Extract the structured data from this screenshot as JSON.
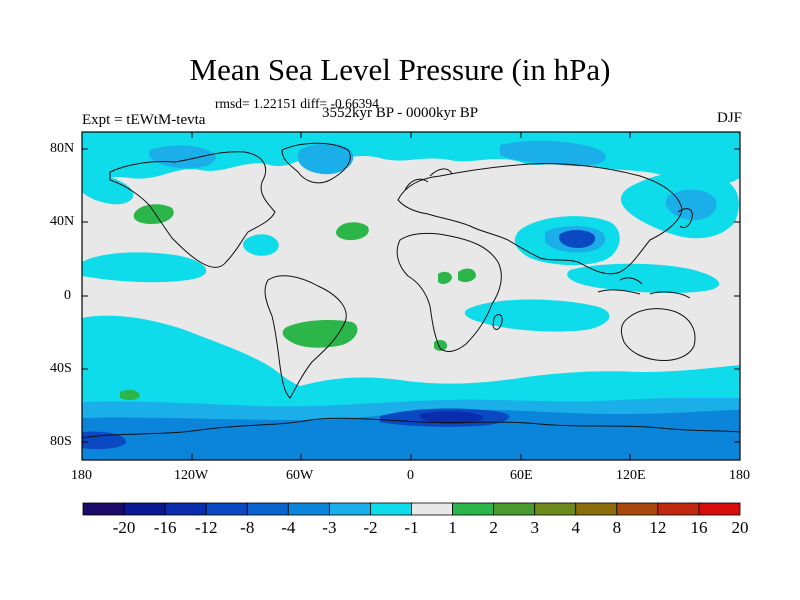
{
  "title": "Mean Sea Level Pressure (in hPa)",
  "stats": "rmsd= 1.22151 diff= -0.66394",
  "experiment": "Expt = tEWtM-tevta",
  "period": "3552kyr BP - 0000kyr BP",
  "season": "DJF",
  "axes": {
    "y_ticks": [
      "80N",
      "40N",
      "0",
      "40S",
      "80S"
    ],
    "x_ticks": [
      "180",
      "120W",
      "60W",
      "0",
      "60E",
      "120E",
      "180"
    ]
  },
  "colorbar": {
    "labels": [
      "-20",
      "-16",
      "-12",
      "-8",
      "-4",
      "-3",
      "-2",
      "-1",
      "1",
      "2",
      "3",
      "4",
      "8",
      "12",
      "16",
      "20"
    ],
    "colors": [
      "#1c0a6b",
      "#0b1894",
      "#0a2dae",
      "#0a49c2",
      "#0a63cf",
      "#0a85d9",
      "#1aafe8",
      "#0fdcea",
      "#e8e8e8",
      "#2cb64a",
      "#4a9a2d",
      "#6b8a1a",
      "#8c6d0c",
      "#a8480c",
      "#c0280f",
      "#d90c0c"
    ]
  },
  "colors": {
    "background": "#e8e8e8",
    "cyan": "#0fdcea",
    "light_blue": "#1aafe8",
    "mid_blue": "#0a85d9",
    "deep_blue": "#0a49c2",
    "darker_blue": "#0a2dae",
    "green": "#2cb64a",
    "coast": "#111111"
  }
}
